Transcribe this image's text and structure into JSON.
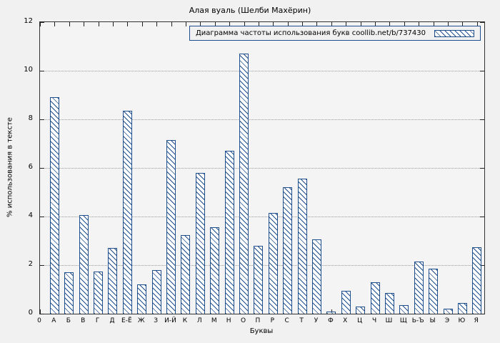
{
  "title": "Алая вуаль (Шелби Махёрин)",
  "legend": {
    "label": "Диаграмма частоты использования букв coollib.net/b/737430"
  },
  "chart_data": {
    "type": "bar",
    "title": "Алая вуаль (Шелби Махёрин)",
    "xlabel": "Буквы",
    "ylabel": "% использования в тексте",
    "ylim": [
      0,
      12
    ],
    "yticks": [
      0,
      2,
      4,
      6,
      8,
      10,
      12
    ],
    "origin_tick": "0",
    "categories": [
      "А",
      "Б",
      "В",
      "Г",
      "Д",
      "Е-Ё",
      "Ж",
      "З",
      "И-Й",
      "К",
      "Л",
      "М",
      "Н",
      "О",
      "П",
      "Р",
      "С",
      "Т",
      "У",
      "Ф",
      "Х",
      "Ц",
      "Ч",
      "Ш",
      "Щ",
      "Ь-Ъ",
      "Ы",
      "Э",
      "Ю",
      "Я"
    ],
    "values": [
      8.9,
      1.7,
      4.05,
      1.75,
      2.7,
      8.35,
      1.2,
      1.8,
      7.15,
      3.25,
      5.8,
      3.55,
      6.7,
      10.7,
      2.8,
      4.15,
      5.2,
      5.55,
      3.05,
      0.1,
      0.95,
      0.3,
      1.3,
      0.85,
      0.35,
      2.15,
      1.85,
      0.2,
      0.45,
      2.75
    ],
    "grid": "horizontal-dotted",
    "legend_position": "top-right-inside",
    "bar_style": "diagonal-hatch",
    "colors": {
      "bar_line": "#1f4e8c",
      "grid": "#9a9a9a",
      "background": "#f1f1f1",
      "plot_background": "#f4f4f4"
    }
  }
}
